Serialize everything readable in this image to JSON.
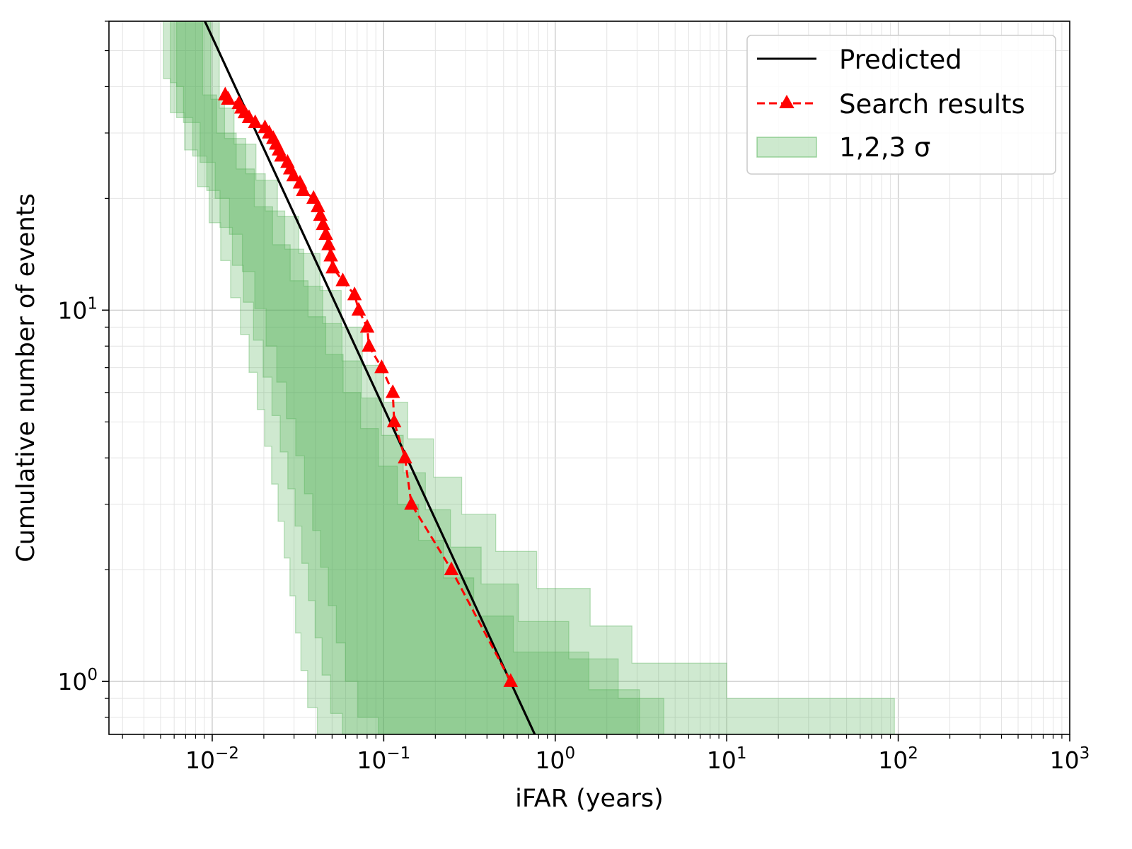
{
  "chart_data": {
    "type": "line",
    "xlabel": "iFAR (years)",
    "ylabel": "Cumulative number of events",
    "xscale": "log",
    "yscale": "log",
    "xlim": [
      0.0025,
      1000
    ],
    "ylim": [
      0.72,
      60
    ],
    "x_ticks": [
      {
        "value": 0.01,
        "base": "10",
        "exp": "−2"
      },
      {
        "value": 0.1,
        "base": "10",
        "exp": "−1"
      },
      {
        "value": 1,
        "base": "10",
        "exp": "0"
      },
      {
        "value": 10,
        "base": "10",
        "exp": "1"
      },
      {
        "value": 100,
        "base": "10",
        "exp": "2"
      },
      {
        "value": 1000,
        "base": "10",
        "exp": "3"
      }
    ],
    "y_ticks": [
      {
        "value": 1,
        "base": "10",
        "exp": "0"
      },
      {
        "value": 10,
        "base": "10",
        "exp": "1"
      }
    ],
    "grid": true,
    "legend_position": "top-right",
    "colors": {
      "predicted": "#000000",
      "search": "#ff0000",
      "band": "#4caf50"
    },
    "predicted": {
      "name": "Predicted",
      "x": [
        0.00906,
        0.76
      ],
      "y": [
        60,
        0.72
      ]
    },
    "search": {
      "name": "Search results",
      "x": [
        0.0119,
        0.0124,
        0.0143,
        0.0148,
        0.0155,
        0.0164,
        0.0178,
        0.0203,
        0.0215,
        0.0227,
        0.0236,
        0.0245,
        0.0253,
        0.0275,
        0.0285,
        0.0298,
        0.0325,
        0.0339,
        0.039,
        0.0413,
        0.0427,
        0.0443,
        0.046,
        0.0477,
        0.0491,
        0.0505,
        0.0577,
        0.0676,
        0.0715,
        0.0801,
        0.082,
        0.0972,
        0.113,
        0.115,
        0.133,
        0.145,
        0.248,
        0.55
      ],
      "y": [
        38,
        37,
        36,
        35,
        34,
        33,
        32,
        31,
        30,
        29,
        28,
        27,
        26,
        25,
        24,
        23,
        22,
        21,
        20,
        19,
        18,
        17,
        16,
        15,
        14,
        13,
        12,
        11,
        10,
        9,
        8,
        7,
        6,
        5,
        4,
        3,
        2,
        1
      ]
    },
    "bands": {
      "name": "1,2,3 σ",
      "levels": [
        {
          "sigma": 1,
          "upper_x": [
            0.0088,
            0.0088,
            0.0106,
            0.0138,
            0.0176,
            0.0225,
            0.0285,
            0.0362,
            0.0459,
            0.058,
            0.0733,
            0.0931,
            0.12,
            0.16,
            0.223,
            0.335,
            0.57,
            1.57,
            3.1
          ],
          "lower_x": [
            0.0062,
            0.0068,
            0.0085,
            0.0104,
            0.0126,
            0.015,
            0.0177,
            0.0206,
            0.0238,
            0.0271,
            0.0307,
            0.0345,
            0.0385,
            0.0428,
            0.0475,
            0.0529,
            0.0598,
            0.0706,
            0.093,
            0.16
          ],
          "upper_y": [
            60,
            48,
            38,
            30,
            24,
            19,
            15,
            12,
            9.6,
            7.6,
            6.0,
            4.8,
            3.8,
            3.0,
            2.4,
            1.9,
            1.5,
            1.2,
            0.95
          ],
          "lower_y": [
            60,
            40,
            32,
            25,
            20,
            16,
            12.7,
            10.1,
            8.0,
            6.4,
            5.1,
            4.05,
            3.2,
            2.55,
            2.03,
            1.6,
            1.27,
            1.0,
            0.8,
            0.72
          ]
        },
        {
          "sigma": 2,
          "upper_x": [
            0.0098,
            0.0098,
            0.0118,
            0.0157,
            0.0204,
            0.0265,
            0.0342,
            0.0441,
            0.0571,
            0.074,
            0.097,
            0.13,
            0.175,
            0.245,
            0.37,
            0.61,
            1.2,
            2.33,
            4.3,
            22.5
          ],
          "lower_x": [
            0.0057,
            0.0062,
            0.0077,
            0.0093,
            0.0111,
            0.0131,
            0.0152,
            0.0174,
            0.0198,
            0.0223,
            0.0249,
            0.0276,
            0.0304,
            0.0333,
            0.0364,
            0.0398,
            0.0437,
            0.049,
            0.0574,
            0.0941
          ],
          "upper_y": [
            60,
            46,
            37,
            29,
            23.3,
            18.5,
            14.6,
            11.6,
            9.2,
            7.3,
            5.8,
            4.6,
            3.65,
            2.9,
            2.3,
            1.83,
            1.45,
            1.15,
            0.9,
            0.72
          ],
          "lower_y": [
            60,
            41,
            33,
            26,
            21,
            16.7,
            13.2,
            10.5,
            8.3,
            6.6,
            5.2,
            4.15,
            3.3,
            2.62,
            2.08,
            1.65,
            1.31,
            1.04,
            0.82,
            0.72
          ]
        },
        {
          "sigma": 3,
          "upper_x": [
            0.011,
            0.011,
            0.0134,
            0.018,
            0.024,
            0.032,
            0.0425,
            0.0565,
            0.075,
            0.1,
            0.138,
            0.195,
            0.285,
            0.45,
            0.78,
            1.6,
            2.8,
            10.0,
            95.0,
            400.0
          ],
          "lower_x": [
            0.0052,
            0.0057,
            0.0069,
            0.0082,
            0.0096,
            0.0112,
            0.0128,
            0.0146,
            0.0164,
            0.0183,
            0.0202,
            0.0222,
            0.0242,
            0.0263,
            0.0284,
            0.0306,
            0.0329,
            0.036,
            0.041,
            0.0594
          ],
          "upper_y": [
            60,
            44,
            35,
            28,
            22.4,
            17.9,
            14.2,
            11.3,
            9.0,
            7.1,
            5.65,
            4.5,
            3.55,
            2.82,
            2.24,
            1.78,
            1.41,
            1.12,
            0.9,
            0.72
          ],
          "lower_y": [
            60,
            42,
            34,
            27,
            21.5,
            17.2,
            13.6,
            10.8,
            8.6,
            6.8,
            5.4,
            4.3,
            3.4,
            2.7,
            2.15,
            1.7,
            1.35,
            1.07,
            0.85,
            0.72
          ]
        }
      ]
    }
  }
}
